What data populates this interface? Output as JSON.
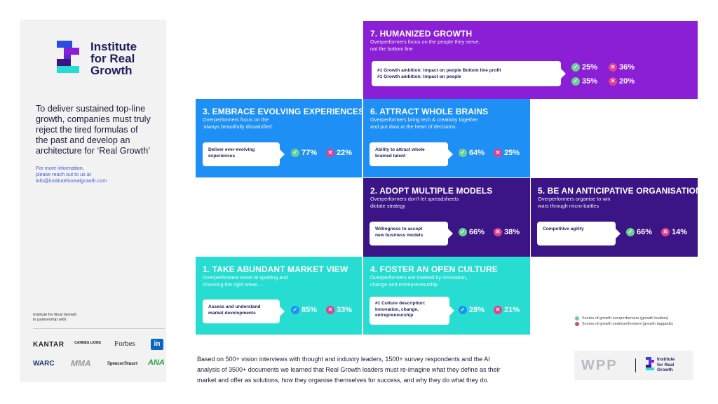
{
  "brand": {
    "logo_lines": [
      "Institute",
      "for Real",
      "Growth"
    ]
  },
  "sidebar": {
    "tagline_lines": [
      "To deliver sustained top-line",
      "growth, companies must truly",
      "reject the tired formulas of",
      "the past and develop an",
      "architecture for ‘Real Growth’"
    ],
    "more_info_lines": [
      "For more information,",
      "please reach out to us at",
      "info@instituteforrealgrowth.com"
    ],
    "partner_label_lines": [
      "Institute for Real Growth",
      "in partnership with:"
    ],
    "partners": [
      "KANTAR",
      "CANNES LIONS",
      "Forbes",
      "in",
      "WARC",
      "MMA",
      "SpencerStuart",
      "ANA"
    ]
  },
  "tiles": {
    "t7": {
      "title": "7. HUMANIZED GROWTH",
      "sub": [
        "Overperformers focus on the people they serve,",
        "not the bottom line"
      ],
      "box": [
        "#1 Growth ambition: Impact on people Bottom line profit",
        "#1 Growth ambition: Impact on people"
      ],
      "scores": [
        {
          "check": "25%",
          "cross": "36%"
        },
        {
          "check": "35%",
          "cross": "20%"
        }
      ]
    },
    "t3": {
      "title": "3. EMBRACE EVOLVING EXPERIENCES",
      "sub": [
        "Overperformers focus on the",
        "‘always beautifully dissatisfied’"
      ],
      "box": [
        "Deliver ever-evolving",
        "experiences"
      ],
      "check": "77%",
      "cross": "22%"
    },
    "t6": {
      "title": "6. ATTRACT WHOLE BRAINS",
      "sub": [
        "Overperformers bring tech & creativity together",
        "and put data at the heart of decisions"
      ],
      "box": [
        "Ability to attract whole",
        "brained talent"
      ],
      "check": "64%",
      "cross": "25%"
    },
    "t2": {
      "title": "2. ADOPT MULTIPLE MODELS",
      "sub": [
        "Overperformers don’t let spreadsheets",
        "dictate strategy"
      ],
      "box": [
        "Willingness to accept",
        "new business models"
      ],
      "check": "66%",
      "cross": "38%"
    },
    "t5": {
      "title": "5. BE AN ANTICIPATIVE ORGANISATION",
      "sub": [
        "Overperformers organise to win",
        "wars through micro-battles"
      ],
      "box": [
        "Competitive agility"
      ],
      "check": "66%",
      "cross": "14%"
    },
    "t1": {
      "title": "1. TAKE ABUNDANT MARKET VIEW",
      "sub": [
        "Overperformers excel at spotting and",
        "choosing the right wave...."
      ],
      "box": [
        "Assess and understand",
        "market developments"
      ],
      "check": "85%",
      "cross": "33%"
    },
    "t4": {
      "title": "4. FOSTER AN OPEN CULTURE",
      "sub": [
        "Overperformers are marked by innovation,",
        "change and entrepreneurship"
      ],
      "box": [
        "#1 Culture description:",
        "Innovation, change,",
        "entrepreneurship"
      ],
      "check": "28%",
      "cross": "21%"
    }
  },
  "legend": {
    "check": "Scores of growth overperformers (growth leaders)",
    "cross": "Scores of growth underperformers (growth laggards)"
  },
  "footer": {
    "lines": [
      "Based on 500+ vision interviews with thought and industry leaders, 1500+ survey respondents and the AI",
      "analysis of 3500+ documents we learned that Real Growth leaders must re-imagine what they define as their",
      "market and offer as solutions, how they organise themselves for success, and why they do what they do."
    ]
  },
  "wpp": {
    "text": "WPP",
    "logo_lines": [
      "Institute",
      "for Real",
      "Growth"
    ]
  },
  "colors": {
    "purple": "#8a1fd6",
    "blue": "#1e90f5",
    "navy": "#3b1585",
    "teal": "#27ddd1",
    "check": "#6bcf94",
    "cross": "#e0418f"
  }
}
